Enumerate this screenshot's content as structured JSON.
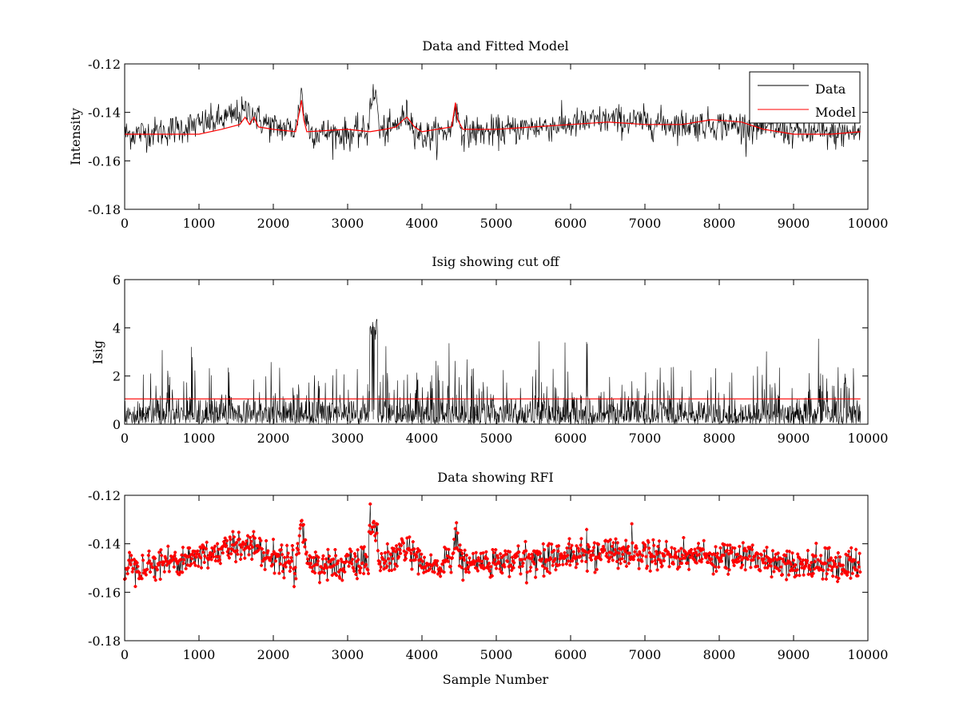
{
  "figure": {
    "background": "#ffffff"
  },
  "chart_data": [
    {
      "type": "line",
      "title": "Data and Fitted Model",
      "xlabel": "",
      "ylabel": "Intensity",
      "xlim": [
        0,
        10000
      ],
      "ylim": [
        -0.18,
        -0.12
      ],
      "xticks": [
        0,
        1000,
        2000,
        3000,
        4000,
        5000,
        6000,
        7000,
        8000,
        9000,
        10000
      ],
      "yticks": [
        -0.12,
        -0.14,
        -0.16,
        -0.18
      ],
      "xtick_labels": [
        "0",
        "1000",
        "2000",
        "3000",
        "4000",
        "5000",
        "6000",
        "7000",
        "8000",
        "9000",
        "10000"
      ],
      "ytick_labels": [
        "-0.12",
        "-0.14",
        "-0.16",
        "-0.18"
      ],
      "grid": false,
      "legend": {
        "position": "top-right",
        "entries": [
          "Data",
          "Model"
        ]
      },
      "series": [
        {
          "name": "Data",
          "color": "#000000",
          "style": "noisy-line",
          "noise": 0.0045,
          "center": [
            [
              0,
              -0.149
            ],
            [
              500,
              -0.148
            ],
            [
              1000,
              -0.145
            ],
            [
              1300,
              -0.143
            ],
            [
              1500,
              -0.141
            ],
            [
              1700,
              -0.139
            ],
            [
              1800,
              -0.143
            ],
            [
              2000,
              -0.146
            ],
            [
              2300,
              -0.147
            ],
            [
              2350,
              -0.138
            ],
            [
              2380,
              -0.13
            ],
            [
              2410,
              -0.14
            ],
            [
              2500,
              -0.148
            ],
            [
              3000,
              -0.149
            ],
            [
              3280,
              -0.148
            ],
            [
              3300,
              -0.134
            ],
            [
              3400,
              -0.134
            ],
            [
              3420,
              -0.148
            ],
            [
              3600,
              -0.147
            ],
            [
              3750,
              -0.142
            ],
            [
              3800,
              -0.141
            ],
            [
              3900,
              -0.146
            ],
            [
              4000,
              -0.15
            ],
            [
              4200,
              -0.149
            ],
            [
              4400,
              -0.147
            ],
            [
              4450,
              -0.136
            ],
            [
              4480,
              -0.142
            ],
            [
              4550,
              -0.148
            ],
            [
              5000,
              -0.148
            ],
            [
              5500,
              -0.146
            ],
            [
              6000,
              -0.145
            ],
            [
              6500,
              -0.143
            ],
            [
              7000,
              -0.144
            ],
            [
              7500,
              -0.145
            ],
            [
              8000,
              -0.145
            ],
            [
              8500,
              -0.146
            ],
            [
              9000,
              -0.148
            ],
            [
              9500,
              -0.149
            ],
            [
              9900,
              -0.148
            ]
          ]
        },
        {
          "name": "Model",
          "color": "#ff0000",
          "style": "line",
          "points": [
            [
              0,
              -0.149
            ],
            [
              1000,
              -0.149
            ],
            [
              1300,
              -0.147
            ],
            [
              1550,
              -0.145
            ],
            [
              1620,
              -0.142
            ],
            [
              1680,
              -0.145
            ],
            [
              1740,
              -0.142
            ],
            [
              1800,
              -0.146
            ],
            [
              2000,
              -0.147
            ],
            [
              2300,
              -0.148
            ],
            [
              2350,
              -0.14
            ],
            [
              2380,
              -0.135
            ],
            [
              2410,
              -0.143
            ],
            [
              2450,
              -0.148
            ],
            [
              3000,
              -0.147
            ],
            [
              3300,
              -0.148
            ],
            [
              3500,
              -0.147
            ],
            [
              3650,
              -0.146
            ],
            [
              3750,
              -0.143
            ],
            [
              3800,
              -0.142
            ],
            [
              3900,
              -0.146
            ],
            [
              4000,
              -0.148
            ],
            [
              4200,
              -0.147
            ],
            [
              4400,
              -0.146
            ],
            [
              4450,
              -0.136
            ],
            [
              4480,
              -0.143
            ],
            [
              4550,
              -0.147
            ],
            [
              5000,
              -0.147
            ],
            [
              5500,
              -0.146
            ],
            [
              6000,
              -0.145
            ],
            [
              6500,
              -0.144
            ],
            [
              7000,
              -0.145
            ],
            [
              7500,
              -0.145
            ],
            [
              7900,
              -0.143
            ],
            [
              8300,
              -0.144
            ],
            [
              8600,
              -0.147
            ],
            [
              9000,
              -0.149
            ],
            [
              9500,
              -0.149
            ],
            [
              9900,
              -0.148
            ]
          ]
        }
      ]
    },
    {
      "type": "line",
      "title": "Isig showing cut off",
      "xlabel": "",
      "ylabel": "Isig",
      "xlim": [
        0,
        10000
      ],
      "ylim": [
        0,
        6
      ],
      "xticks": [
        0,
        1000,
        2000,
        3000,
        4000,
        5000,
        6000,
        7000,
        8000,
        9000,
        10000
      ],
      "yticks": [
        0,
        2,
        4,
        6
      ],
      "xtick_labels": [
        "0",
        "1000",
        "2000",
        "3000",
        "4000",
        "5000",
        "6000",
        "7000",
        "8000",
        "9000",
        "10000"
      ],
      "ytick_labels": [
        "0",
        "2",
        "4",
        "6"
      ],
      "grid": false,
      "series": [
        {
          "color": "#000000",
          "style": "noisy-spikes",
          "base": [
            0.0,
            1.1
          ],
          "spikes_max": 3.6,
          "gap": [
            3300,
            3400
          ],
          "gap_values": [
            3.5,
            4.4
          ]
        },
        {
          "color": "#ff0000",
          "style": "hline",
          "value": 1.05
        }
      ]
    },
    {
      "type": "scatter",
      "title": "Data showing RFI",
      "xlabel": "Sample Number",
      "ylabel": "",
      "xlim": [
        0,
        10000
      ],
      "ylim": [
        -0.18,
        -0.12
      ],
      "xticks": [
        0,
        1000,
        2000,
        3000,
        4000,
        5000,
        6000,
        7000,
        8000,
        9000,
        10000
      ],
      "yticks": [
        -0.12,
        -0.14,
        -0.16,
        -0.18
      ],
      "xtick_labels": [
        "0",
        "1000",
        "2000",
        "3000",
        "4000",
        "5000",
        "6000",
        "7000",
        "8000",
        "9000",
        "10000"
      ],
      "ytick_labels": [
        "-0.12",
        "-0.14",
        "-0.16",
        "-0.18"
      ],
      "grid": false,
      "series": [
        {
          "color": "#ff0000",
          "style": "noisy-markers",
          "noise": 0.0045,
          "center_ref": 0
        }
      ]
    }
  ]
}
